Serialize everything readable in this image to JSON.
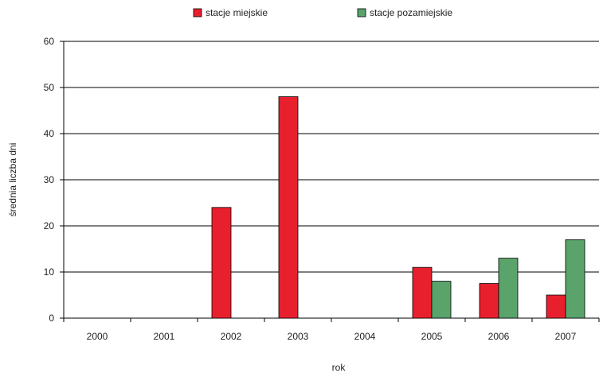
{
  "chart_data": {
    "type": "bar",
    "title": "",
    "xlabel": "rok",
    "ylabel": "średnia liczba dni",
    "ylim": [
      0,
      60
    ],
    "yticks": [
      "0",
      "10",
      "20",
      "30",
      "40",
      "50",
      "60"
    ],
    "categories": [
      "2000",
      "2001",
      "2002",
      "2003",
      "2004",
      "2005",
      "2006",
      "2007"
    ],
    "grid": true,
    "legend_position": "top",
    "series": [
      {
        "name": "stacje miejskie",
        "color": "#e8202e",
        "values": [
          null,
          null,
          24,
          48,
          null,
          11,
          7.5,
          5
        ]
      },
      {
        "name": "stacje pozamiejskie",
        "color": "#5aa36b",
        "values": [
          null,
          null,
          null,
          null,
          null,
          8,
          13,
          17
        ]
      }
    ]
  }
}
